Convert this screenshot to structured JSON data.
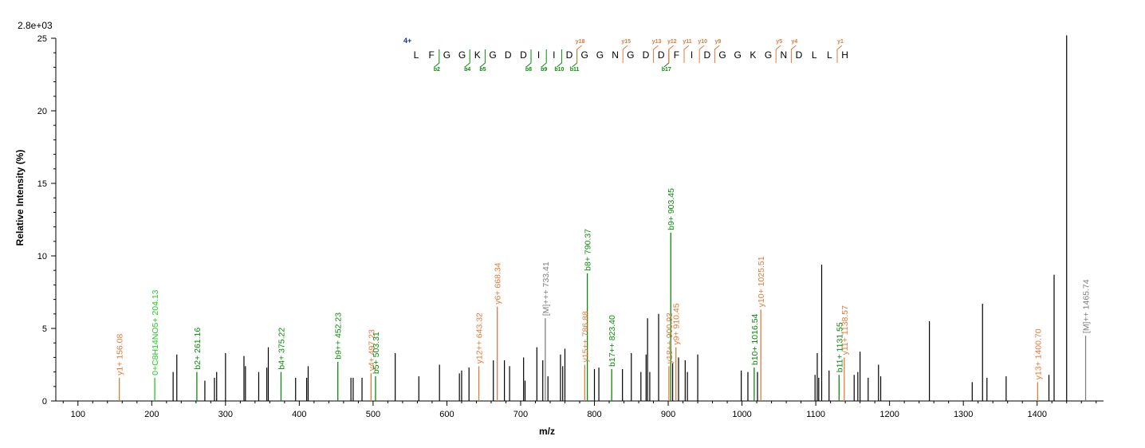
{
  "chart_data": {
    "type": "bar",
    "title": "",
    "scale_label": "2.8e+03",
    "xlabel": "m/z",
    "ylabel": "Relative Intensity (%)",
    "xlim": [
      70,
      1490
    ],
    "ylim": [
      0,
      25
    ],
    "x_ticks": [
      100,
      200,
      300,
      400,
      500,
      600,
      700,
      800,
      900,
      1000,
      1100,
      1200,
      1300,
      1400
    ],
    "y_ticks": [
      0,
      5,
      10,
      15,
      20,
      25
    ],
    "colors": {
      "unassigned": "#000000",
      "y_ion": "#e07b3c",
      "b_ion": "#0b8a0b",
      "precursor": "#808080",
      "neutral_loss": "#22cc22",
      "charge": "#1a2fa0"
    },
    "unassigned_peaks": [
      [
        229,
        2.0
      ],
      [
        234,
        3.2
      ],
      [
        272,
        1.4
      ],
      [
        285,
        1.6
      ],
      [
        288,
        2.0
      ],
      [
        300,
        3.3
      ],
      [
        325,
        3.1
      ],
      [
        327,
        2.4
      ],
      [
        345,
        2.0
      ],
      [
        356,
        2.3
      ],
      [
        358,
        3.7
      ],
      [
        395,
        1.6
      ],
      [
        410,
        1.6
      ],
      [
        412,
        2.4
      ],
      [
        470,
        1.6
      ],
      [
        473,
        1.6
      ],
      [
        485,
        1.6
      ],
      [
        530,
        3.3
      ],
      [
        562,
        1.7
      ],
      [
        590,
        2.5
      ],
      [
        617,
        1.9
      ],
      [
        620,
        2.1
      ],
      [
        630,
        2.3
      ],
      [
        663,
        2.8
      ],
      [
        678,
        2.8
      ],
      [
        685,
        2.4
      ],
      [
        704,
        3.0
      ],
      [
        706,
        1.4
      ],
      [
        722,
        3.7
      ],
      [
        730,
        2.8
      ],
      [
        737,
        1.7
      ],
      [
        754,
        3.2
      ],
      [
        757,
        2.4
      ],
      [
        760,
        3.6
      ],
      [
        800,
        2.2
      ],
      [
        806,
        2.3
      ],
      [
        838,
        2.2
      ],
      [
        850,
        3.3
      ],
      [
        863,
        2.0
      ],
      [
        870,
        3.2
      ],
      [
        872,
        5.7
      ],
      [
        875,
        2.0
      ],
      [
        887,
        6.0
      ],
      [
        906,
        2.6
      ],
      [
        914,
        3.0
      ],
      [
        923,
        2.8
      ],
      [
        926,
        2.0
      ],
      [
        940,
        3.2
      ],
      [
        999,
        2.1
      ],
      [
        1008,
        2.0
      ],
      [
        1021,
        2.0
      ],
      [
        1099,
        1.8
      ],
      [
        1102,
        3.3
      ],
      [
        1104,
        1.6
      ],
      [
        1108,
        9.4
      ],
      [
        1118,
        2.1
      ],
      [
        1152,
        1.8
      ],
      [
        1157,
        2.0
      ],
      [
        1160,
        3.4
      ],
      [
        1171,
        1.6
      ],
      [
        1185,
        2.5
      ],
      [
        1188,
        1.7
      ],
      [
        1254,
        5.5
      ],
      [
        1312,
        1.3
      ],
      [
        1326,
        6.7
      ],
      [
        1332,
        1.6
      ],
      [
        1358,
        1.7
      ],
      [
        1416,
        1.8
      ],
      [
        1423,
        8.7
      ],
      [
        1440,
        25.2
      ]
    ],
    "annotated_peaks": [
      {
        "mz": 156.08,
        "intensity": 1.6,
        "label": "y1+ 156.08",
        "kind": "y"
      },
      {
        "mz": 204.13,
        "intensity": 1.6,
        "label": "0+C8H14NO5+ 204.13",
        "kind": "nl"
      },
      {
        "mz": 261.16,
        "intensity": 2.0,
        "label": "b2+ 261.16",
        "kind": "b"
      },
      {
        "mz": 375.22,
        "intensity": 2.0,
        "label": "b4+ 375.22",
        "kind": "b"
      },
      {
        "mz": 452.23,
        "intensity": 2.7,
        "label": "b9++ 452.23",
        "kind": "b"
      },
      {
        "mz": 497.23,
        "intensity": 1.9,
        "label": "y4+ 497.23",
        "kind": "y"
      },
      {
        "mz": 503.31,
        "intensity": 1.7,
        "label": "b5+ 503.31",
        "kind": "b"
      },
      {
        "mz": 643.32,
        "intensity": 2.4,
        "label": "y12++ 643.32",
        "kind": "y"
      },
      {
        "mz": 668.34,
        "intensity": 6.5,
        "label": "y6+ 668.34",
        "kind": "y"
      },
      {
        "mz": 733.41,
        "intensity": 5.7,
        "label": "[M]+++ 733.41",
        "kind": "precursor"
      },
      {
        "mz": 786.88,
        "intensity": 2.5,
        "label": "y15++ 786.88",
        "kind": "y"
      },
      {
        "mz": 790.37,
        "intensity": 8.8,
        "label": "b8+ 790.37",
        "kind": "b"
      },
      {
        "mz": 823.4,
        "intensity": 2.2,
        "label": "b17++ 823.40",
        "kind": "b"
      },
      {
        "mz": 900.93,
        "intensity": 2.4,
        "label": "y18++ 900.93",
        "kind": "y"
      },
      {
        "mz": 903.45,
        "intensity": 11.6,
        "label": "b9+ 903.45",
        "kind": "b"
      },
      {
        "mz": 910.45,
        "intensity": 3.7,
        "label": "y9+ 910.45",
        "kind": "y"
      },
      {
        "mz": 1016.54,
        "intensity": 2.3,
        "label": "b10+ 1016.54",
        "kind": "b"
      },
      {
        "mz": 1025.51,
        "intensity": 6.3,
        "label": "y10+ 1025.51",
        "kind": "y"
      },
      {
        "mz": 1131.55,
        "intensity": 1.8,
        "label": "b11+ 1131.55",
        "kind": "b"
      },
      {
        "mz": 1138.57,
        "intensity": 3.0,
        "label": "y11+ 1138.57",
        "kind": "y"
      },
      {
        "mz": 1400.7,
        "intensity": 1.3,
        "label": "y13+ 1400.70",
        "kind": "y"
      },
      {
        "mz": 1465.74,
        "intensity": 4.5,
        "label": "[M]++ 1465.74",
        "kind": "precursor"
      }
    ],
    "peptide": {
      "charge_label": "4+",
      "sequence": [
        "L",
        "F",
        "G",
        "G",
        "K",
        "G",
        "D",
        "D",
        "I",
        "I",
        "D",
        "G",
        "G",
        "N",
        "G",
        "D",
        "D",
        "F",
        "I",
        "D",
        "G",
        "G",
        "K",
        "G",
        "N",
        "D",
        "L",
        "L",
        "H"
      ],
      "b_ions": [
        {
          "after": 2,
          "label": "b2"
        },
        {
          "after": 4,
          "label": "b4"
        },
        {
          "after": 5,
          "label": "b5"
        },
        {
          "after": 8,
          "label": "b8"
        },
        {
          "after": 9,
          "label": "b9"
        },
        {
          "after": 10,
          "label": "b10"
        },
        {
          "after": 11,
          "label": "b11"
        },
        {
          "after": 17,
          "label": "b17"
        }
      ],
      "y_ions": [
        {
          "after": 11,
          "label": "y18"
        },
        {
          "after": 14,
          "label": "y15"
        },
        {
          "after": 16,
          "label": "y13"
        },
        {
          "after": 17,
          "label": "y12"
        },
        {
          "after": 18,
          "label": "y11"
        },
        {
          "after": 19,
          "label": "y10"
        },
        {
          "after": 20,
          "label": "y9"
        },
        {
          "after": 24,
          "label": "y5"
        },
        {
          "after": 25,
          "label": "y4"
        },
        {
          "after": 28,
          "label": "y1"
        }
      ]
    }
  }
}
